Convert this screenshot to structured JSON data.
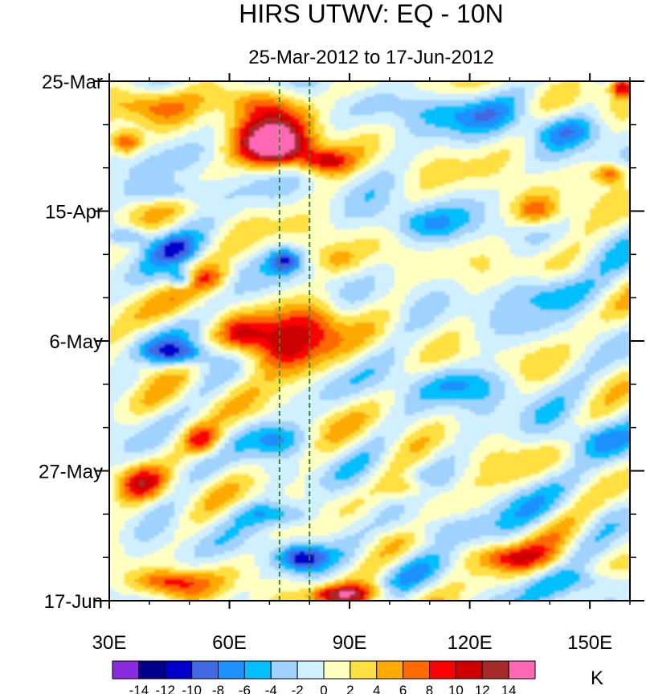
{
  "chart_data": {
    "type": "heatmap",
    "title": "HIRS UTWV: EQ - 10N",
    "subtitle": "25-Mar-2012 to 17-Jun-2012",
    "x_axis": {
      "range": [
        30,
        160
      ],
      "ticks": [
        30,
        60,
        90,
        120,
        150
      ],
      "tick_labels": [
        "30E",
        "60E",
        "90E",
        "120E",
        "150E"
      ],
      "minor_ticks": [
        40,
        50,
        70,
        80,
        100,
        110,
        130,
        140,
        160
      ]
    },
    "y_axis": {
      "range": [
        "2012-03-25",
        "2012-06-17"
      ],
      "inverted": true,
      "ticks": [
        "2012-03-25",
        "2012-04-15",
        "2012-05-06",
        "2012-05-27",
        "2012-06-17"
      ],
      "tick_labels": [
        "25-Mar",
        "15-Apr",
        "6-May",
        "27-May",
        "17-Jun"
      ],
      "minor_ticks": [
        "2012-04-01",
        "2012-04-08",
        "2012-04-22",
        "2012-04-29",
        "2012-05-13",
        "2012-05-20",
        "2012-06-03",
        "2012-06-10"
      ]
    },
    "reference_lines": {
      "x": [
        72.5,
        80
      ],
      "color": "#2e8b2e",
      "style": "dashed"
    },
    "colorbar": {
      "unit": "K",
      "levels": [
        -14,
        -12,
        -10,
        -8,
        -6,
        -4,
        -2,
        0,
        2,
        4,
        6,
        8,
        10,
        12,
        14
      ],
      "level_labels": [
        "-14",
        "-12",
        "-10",
        "-8",
        "-6",
        "-4",
        "-2",
        "0",
        "2",
        "4",
        "6",
        "8",
        "10",
        "12",
        "14"
      ],
      "colors": [
        "#8a2be2",
        "#00008b",
        "#0000cd",
        "#4169e1",
        "#1e90ff",
        "#00bfff",
        "#a0d2ff",
        "#d0f0ff",
        "#ffffc0",
        "#ffe040",
        "#ffaa00",
        "#ff6a00",
        "#ff0000",
        "#cc0000",
        "#a52a2a",
        "#ff69b4"
      ]
    },
    "features": [
      {
        "lon": 72,
        "date": "2012-04-05",
        "value": 13,
        "lonw": 9,
        "dayw": 3
      },
      {
        "lon": 70,
        "date": "2012-04-01",
        "value": 9,
        "lonw": 10,
        "dayw": 4
      },
      {
        "lon": 84,
        "date": "2012-04-07",
        "value": 9,
        "lonw": 6,
        "dayw": 2
      },
      {
        "lon": 34,
        "date": "2012-04-04",
        "value": 9,
        "lonw": 4,
        "dayw": 2
      },
      {
        "lon": 66,
        "date": "2012-03-28",
        "value": 6,
        "lonw": 10,
        "dayw": 2.5
      },
      {
        "lon": 40,
        "date": "2012-03-29",
        "value": 5,
        "lonw": 8,
        "dayw": 2.5
      },
      {
        "lon": 158,
        "date": "2012-03-26",
        "value": 10,
        "lonw": 3,
        "dayw": 1.5
      },
      {
        "lon": 155,
        "date": "2012-04-09",
        "value": 8,
        "lonw": 4,
        "dayw": 1.5
      },
      {
        "lon": 137,
        "date": "2012-04-15",
        "value": 8,
        "lonw": 6,
        "dayw": 2.5
      },
      {
        "lon": 45,
        "date": "2012-04-12",
        "value": -6,
        "lonw": 10,
        "dayw": 2
      },
      {
        "lon": 35,
        "date": "2012-04-19",
        "value": -6,
        "lonw": 5,
        "dayw": 1.5
      },
      {
        "lon": 46,
        "date": "2012-04-21",
        "value": -5,
        "lonw": 6,
        "dayw": 2
      },
      {
        "lon": 55,
        "date": "2012-04-26",
        "value": 5,
        "lonw": 5,
        "dayw": 2
      },
      {
        "lon": 48,
        "date": "2012-04-26",
        "value": -8,
        "lonw": 3,
        "dayw": 1.5
      },
      {
        "lon": 74,
        "date": "2012-04-23",
        "value": -9,
        "lonw": 4,
        "dayw": 2
      },
      {
        "lon": 87,
        "date": "2012-04-23",
        "value": 4,
        "lonw": 6,
        "dayw": 2.5
      },
      {
        "lon": 75,
        "date": "2012-05-07",
        "value": 11,
        "lonw": 9,
        "dayw": 5
      },
      {
        "lon": 63,
        "date": "2012-05-05",
        "value": 9,
        "lonw": 6,
        "dayw": 3
      },
      {
        "lon": 83,
        "date": "2012-05-03",
        "value": 5,
        "lonw": 6,
        "dayw": 4
      },
      {
        "lon": 48,
        "date": "2012-05-08",
        "value": -9,
        "lonw": 7,
        "dayw": 2
      },
      {
        "lon": 38,
        "date": "2012-05-10",
        "value": 4,
        "lonw": 5,
        "dayw": 2
      },
      {
        "lon": 53,
        "date": "2012-05-22",
        "value": 9,
        "lonw": 5,
        "dayw": 2.5
      },
      {
        "lon": 38,
        "date": "2012-05-29",
        "value": 8,
        "lonw": 6,
        "dayw": 2.5
      },
      {
        "lon": 72,
        "date": "2012-05-22",
        "value": -5,
        "lonw": 8,
        "dayw": 2.5
      },
      {
        "lon": 72,
        "date": "2012-06-03",
        "value": -6,
        "lonw": 10,
        "dayw": 2
      },
      {
        "lon": 78,
        "date": "2012-06-10",
        "value": -10,
        "lonw": 6,
        "dayw": 2
      },
      {
        "lon": 45,
        "date": "2012-06-14",
        "value": 8,
        "lonw": 9,
        "dayw": 2
      },
      {
        "lon": 88,
        "date": "2012-06-16",
        "value": 9,
        "lonw": 8,
        "dayw": 1.5
      },
      {
        "lon": 105,
        "date": "2012-05-30",
        "value": 6,
        "lonw": 6,
        "dayw": 2
      },
      {
        "lon": 130,
        "date": "2012-06-10",
        "value": 6,
        "lonw": 10,
        "dayw": 2
      },
      {
        "lon": 95,
        "date": "2012-06-16",
        "value": 4,
        "lonw": 10,
        "dayw": 2
      },
      {
        "lon": 120,
        "date": "2012-03-30",
        "value": -5,
        "lonw": 16,
        "dayw": 3
      },
      {
        "lon": 143,
        "date": "2012-04-02",
        "value": -5,
        "lonw": 10,
        "dayw": 2.5
      },
      {
        "lon": 108,
        "date": "2012-04-17",
        "value": -5,
        "lonw": 10,
        "dayw": 3
      },
      {
        "lon": 140,
        "date": "2012-04-28",
        "value": -5,
        "lonw": 12,
        "dayw": 3
      },
      {
        "lon": 118,
        "date": "2012-05-13",
        "value": -5,
        "lonw": 14,
        "dayw": 3
      },
      {
        "lon": 150,
        "date": "2012-05-22",
        "value": -5,
        "lonw": 10,
        "dayw": 3
      },
      {
        "lon": 110,
        "date": "2012-06-05",
        "value": -5,
        "lonw": 12,
        "dayw": 2.5
      },
      {
        "lon": 150,
        "date": "2012-06-14",
        "value": -4,
        "lonw": 10,
        "dayw": 2
      }
    ]
  }
}
